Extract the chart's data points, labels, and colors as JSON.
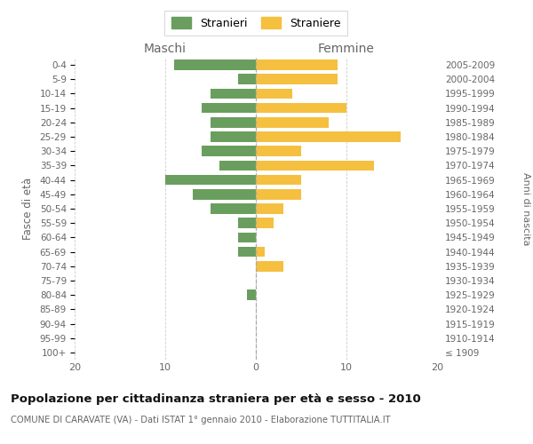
{
  "age_groups": [
    "100+",
    "95-99",
    "90-94",
    "85-89",
    "80-84",
    "75-79",
    "70-74",
    "65-69",
    "60-64",
    "55-59",
    "50-54",
    "45-49",
    "40-44",
    "35-39",
    "30-34",
    "25-29",
    "20-24",
    "15-19",
    "10-14",
    "5-9",
    "0-4"
  ],
  "birth_years": [
    "≤ 1909",
    "1910-1914",
    "1915-1919",
    "1920-1924",
    "1925-1929",
    "1930-1934",
    "1935-1939",
    "1940-1944",
    "1945-1949",
    "1950-1954",
    "1955-1959",
    "1960-1964",
    "1965-1969",
    "1970-1974",
    "1975-1979",
    "1980-1984",
    "1985-1989",
    "1990-1994",
    "1995-1999",
    "2000-2004",
    "2005-2009"
  ],
  "males": [
    0,
    0,
    0,
    0,
    1,
    0,
    0,
    2,
    2,
    2,
    5,
    7,
    10,
    4,
    6,
    5,
    5,
    6,
    5,
    2,
    9
  ],
  "females": [
    0,
    0,
    0,
    0,
    0,
    0,
    3,
    1,
    0,
    2,
    3,
    5,
    5,
    13,
    5,
    16,
    8,
    10,
    4,
    9,
    9
  ],
  "male_color": "#6a9e5e",
  "female_color": "#f5c040",
  "background_color": "#ffffff",
  "grid_color": "#cccccc",
  "title": "Popolazione per cittadinanza straniera per età e sesso - 2010",
  "subtitle": "COMUNE DI CARAVATE (VA) - Dati ISTAT 1° gennaio 2010 - Elaborazione TUTTITALIA.IT",
  "ylabel_left": "Fasce di età",
  "ylabel_right": "Anni di nascita",
  "maschi_label": "Maschi",
  "femmine_label": "Femmine",
  "legend_males": "Stranieri",
  "legend_females": "Straniere",
  "xlim": 20,
  "text_color": "#666666",
  "spine_color": "#cccccc"
}
